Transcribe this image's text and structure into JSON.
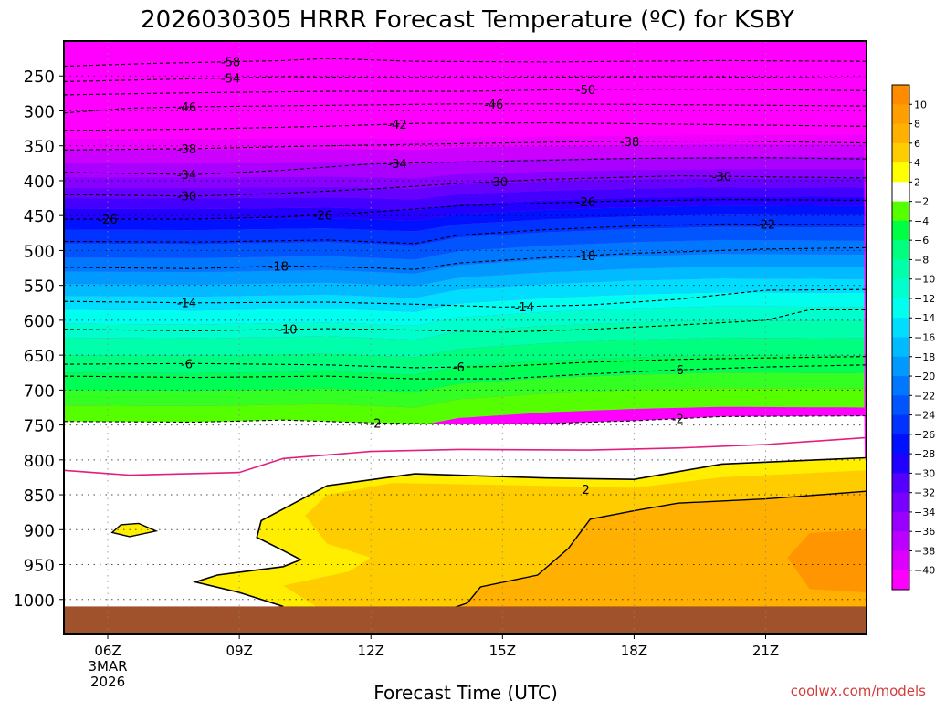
{
  "chart_data": {
    "type": "heatmap",
    "title": "2026030305 HRRR Forecast Temperature (ºC) for KSBY",
    "xlabel": "Forecast Time (UTC)",
    "ylabel": "",
    "credit": "coolwx.com/models",
    "x_range_hours": [
      5,
      23.3
    ],
    "y_range_hpa": [
      200,
      1050
    ],
    "x_ticks": [
      {
        "hour": 6,
        "lines": [
          "06Z",
          "3MAR",
          "2026"
        ]
      },
      {
        "hour": 9,
        "lines": [
          "09Z"
        ]
      },
      {
        "hour": 12,
        "lines": [
          "12Z"
        ]
      },
      {
        "hour": 15,
        "lines": [
          "15Z"
        ]
      },
      {
        "hour": 18,
        "lines": [
          "18Z"
        ]
      },
      {
        "hour": 21,
        "lines": [
          "21Z"
        ]
      }
    ],
    "y_ticks": [
      {
        "p": 250,
        "label": "250"
      },
      {
        "p": 300,
        "label": "300"
      },
      {
        "p": 350,
        "label": "350"
      },
      {
        "p": 400,
        "label": "400"
      },
      {
        "p": 450,
        "label": "450"
      },
      {
        "p": 500,
        "label": "500"
      },
      {
        "p": 550,
        "label": "550"
      },
      {
        "p": 600,
        "label": "600"
      },
      {
        "p": 650,
        "label": "650"
      },
      {
        "p": 700,
        "label": "700"
      },
      {
        "p": 750,
        "label": "750"
      },
      {
        "p": 800,
        "label": "800"
      },
      {
        "p": 850,
        "label": "850"
      },
      {
        "p": 900,
        "label": "900"
      },
      {
        "p": 950,
        "label": "950"
      },
      {
        "p": 1000,
        "label": "1000"
      }
    ],
    "colorbar": {
      "levels": [
        10,
        8,
        6,
        4,
        2,
        -2,
        -4,
        -6,
        -8,
        -10,
        -12,
        -14,
        -16,
        -18,
        -20,
        -22,
        -24,
        -26,
        -28,
        -30,
        -32,
        -34,
        -36,
        -38,
        -40
      ],
      "colors": [
        "#ff8c00",
        "#ff9e00",
        "#ffb000",
        "#ffcc00",
        "#ffff00",
        "#ffffff",
        "#55ff00",
        "#00ff44",
        "#00ff7f",
        "#00ffaa",
        "#00ffcc",
        "#00ffee",
        "#00ddff",
        "#00bbff",
        "#0099ff",
        "#0077ff",
        "#0055ff",
        "#0033ff",
        "#0011ff",
        "#2200ff",
        "#5500ff",
        "#7700ff",
        "#9900ff",
        "#bb00ff",
        "#dd00ff",
        "#ff00ff"
      ]
    },
    "isotherms": [
      {
        "value": -58,
        "label": "-58",
        "points": [
          [
            5,
            236
          ],
          [
            7,
            232
          ],
          [
            10,
            228
          ],
          [
            11,
            225
          ],
          [
            13,
            229
          ],
          [
            16,
            230
          ],
          [
            20,
            228
          ],
          [
            23.3,
            229
          ]
        ],
        "label_at": [
          8.8
        ]
      },
      {
        "value": -54,
        "label": "-54",
        "points": [
          [
            5,
            258
          ],
          [
            8,
            254
          ],
          [
            10,
            251
          ],
          [
            12,
            252
          ],
          [
            15,
            252
          ],
          [
            19,
            251
          ],
          [
            23.3,
            253
          ]
        ],
        "label_at": [
          8.8
        ]
      },
      {
        "value": -50,
        "label": "-50",
        "points": [
          [
            5,
            277
          ],
          [
            8,
            274
          ],
          [
            11,
            272
          ],
          [
            14,
            272
          ],
          [
            17,
            269
          ],
          [
            20,
            269
          ],
          [
            23.3,
            271
          ]
        ],
        "label_at": [
          16.9
        ]
      },
      {
        "value": -46,
        "label": "-46",
        "points": [
          [
            5,
            303
          ],
          [
            6.5,
            296
          ],
          [
            8,
            294
          ],
          [
            11,
            292
          ],
          [
            14,
            290
          ],
          [
            16,
            290
          ],
          [
            19,
            291
          ],
          [
            23.3,
            293
          ]
        ],
        "label_at": [
          7.8,
          14.8
        ]
      },
      {
        "value": -42,
        "label": "-42",
        "points": [
          [
            5,
            328
          ],
          [
            8,
            326
          ],
          [
            11,
            322
          ],
          [
            13,
            318
          ],
          [
            16,
            317
          ],
          [
            19,
            319
          ],
          [
            23.3,
            322
          ]
        ],
        "label_at": [
          12.6
        ]
      },
      {
        "value": -38,
        "label": "-38",
        "points": [
          [
            5,
            356
          ],
          [
            8,
            354
          ],
          [
            11,
            350
          ],
          [
            14,
            347
          ],
          [
            17,
            344
          ],
          [
            20,
            343
          ],
          [
            23.3,
            346
          ]
        ],
        "label_at": [
          7.8,
          17.9
        ]
      },
      {
        "value": -34,
        "label": "-34",
        "points": [
          [
            5,
            388
          ],
          [
            8,
            391
          ],
          [
            10,
            385
          ],
          [
            12,
            376
          ],
          [
            15,
            372
          ],
          [
            18,
            368
          ],
          [
            21,
            367
          ],
          [
            23.3,
            369
          ]
        ],
        "label_at": [
          7.8,
          12.6
        ]
      },
      {
        "value": -30,
        "label": "-30",
        "points": [
          [
            5,
            420
          ],
          [
            8,
            422
          ],
          [
            10,
            418
          ],
          [
            12,
            412
          ],
          [
            14,
            404
          ],
          [
            16,
            398
          ],
          [
            19,
            393
          ],
          [
            23.3,
            396
          ]
        ],
        "label_at": [
          7.8,
          14.9,
          20
        ]
      },
      {
        "value": -26,
        "label": "-26",
        "points": [
          [
            5,
            455
          ],
          [
            8,
            455
          ],
          [
            10,
            452
          ],
          [
            12,
            445
          ],
          [
            14,
            436
          ],
          [
            17,
            430
          ],
          [
            20,
            427
          ],
          [
            23.3,
            428
          ]
        ],
        "label_at": [
          6.0,
          10.9,
          16.9
        ]
      },
      {
        "value": -22,
        "label": "-22",
        "points": [
          [
            5,
            487
          ],
          [
            8,
            488
          ],
          [
            11,
            485
          ],
          [
            13,
            490
          ],
          [
            14,
            478
          ],
          [
            16,
            470
          ],
          [
            18,
            465
          ],
          [
            20,
            462
          ],
          [
            23.3,
            463
          ]
        ],
        "label_at": [
          21.0
        ]
      },
      {
        "value": -18,
        "label": "-18",
        "points": [
          [
            5,
            524
          ],
          [
            8,
            526
          ],
          [
            10,
            522
          ],
          [
            12,
            525
          ],
          [
            13,
            527
          ],
          [
            14,
            518
          ],
          [
            16,
            510
          ],
          [
            18,
            504
          ],
          [
            21,
            498
          ],
          [
            23.3,
            496
          ]
        ],
        "label_at": [
          9.9,
          16.9
        ]
      },
      {
        "value": -14,
        "label": "-14",
        "points": [
          [
            5,
            573
          ],
          [
            8,
            575
          ],
          [
            11,
            574
          ],
          [
            13,
            577
          ],
          [
            15,
            581
          ],
          [
            17,
            578
          ],
          [
            19,
            570
          ],
          [
            21,
            557
          ],
          [
            23.3,
            556
          ]
        ],
        "label_at": [
          7.8,
          15.5
        ]
      },
      {
        "value": -10,
        "label": "-10",
        "points": [
          [
            5,
            613
          ],
          [
            8,
            615
          ],
          [
            11,
            612
          ],
          [
            13,
            614
          ],
          [
            15,
            617
          ],
          [
            17,
            613
          ],
          [
            19,
            607
          ],
          [
            21,
            600
          ],
          [
            22,
            585
          ],
          [
            23.3,
            585
          ]
        ],
        "label_at": [
          10.1
        ]
      },
      {
        "value": -6,
        "label": "-6",
        "points": [
          [
            5,
            663
          ],
          [
            8,
            662
          ],
          [
            11,
            664
          ],
          [
            13,
            668
          ],
          [
            15,
            666
          ],
          [
            17,
            660
          ],
          [
            19,
            656
          ],
          [
            21,
            654
          ],
          [
            23.3,
            652
          ]
        ],
        "label_at": [
          7.8,
          14.0
        ]
      },
      {
        "value": -6,
        "label": "-6",
        "points": [
          [
            5,
            680
          ],
          [
            8,
            682
          ],
          [
            11,
            680
          ],
          [
            13,
            684
          ],
          [
            15,
            684
          ],
          [
            17,
            677
          ],
          [
            19,
            671
          ],
          [
            21,
            667
          ],
          [
            23.3,
            664
          ]
        ],
        "label_at": [
          19.0
        ]
      },
      {
        "value": -2,
        "label": "-2",
        "points": [
          [
            5,
            745
          ],
          [
            8,
            746
          ],
          [
            10,
            743
          ],
          [
            12,
            747
          ],
          [
            14,
            749
          ],
          [
            16,
            748
          ],
          [
            18,
            744
          ],
          [
            20,
            738
          ],
          [
            23.3,
            737
          ]
        ],
        "label_at": [
          12.1,
          19.0
        ]
      }
    ],
    "freezing_line": {
      "value": 0,
      "points": [
        [
          5,
          815
        ],
        [
          6.5,
          822
        ],
        [
          9,
          818
        ],
        [
          10,
          798
        ],
        [
          12,
          788
        ],
        [
          14,
          785
        ],
        [
          17,
          786
        ],
        [
          19,
          783
        ],
        [
          21,
          778
        ],
        [
          23.3,
          768
        ]
      ]
    },
    "warm_layer": {
      "label": "2",
      "label_at": [
        16.9,
        842
      ],
      "outline": [
        [
          23.3,
          797
        ],
        [
          20,
          806
        ],
        [
          18,
          828
        ],
        [
          16,
          826
        ],
        [
          13,
          820
        ],
        [
          11,
          837
        ],
        [
          9.5,
          887
        ],
        [
          9.4,
          911
        ],
        [
          10,
          930
        ],
        [
          10.4,
          943
        ],
        [
          10,
          953
        ],
        [
          8.5,
          965
        ],
        [
          8,
          975
        ],
        [
          9,
          990
        ],
        [
          10,
          1010
        ],
        [
          9,
          1020
        ],
        [
          23.3,
          1020
        ]
      ],
      "core_outline": [
        [
          23.3,
          845
        ],
        [
          21,
          856
        ],
        [
          19,
          862
        ],
        [
          18,
          873
        ],
        [
          17,
          885
        ],
        [
          16.5,
          927
        ],
        [
          15.8,
          965
        ],
        [
          14.5,
          982
        ],
        [
          14.2,
          1005
        ],
        [
          13.5,
          1020
        ],
        [
          23.3,
          1020
        ]
      ],
      "isolated_blob": [
        [
          6.7,
          891
        ],
        [
          7.1,
          902
        ],
        [
          6.5,
          910
        ],
        [
          6.1,
          904
        ],
        [
          6.3,
          893
        ]
      ]
    },
    "surface_band_hpa": 1010
  }
}
